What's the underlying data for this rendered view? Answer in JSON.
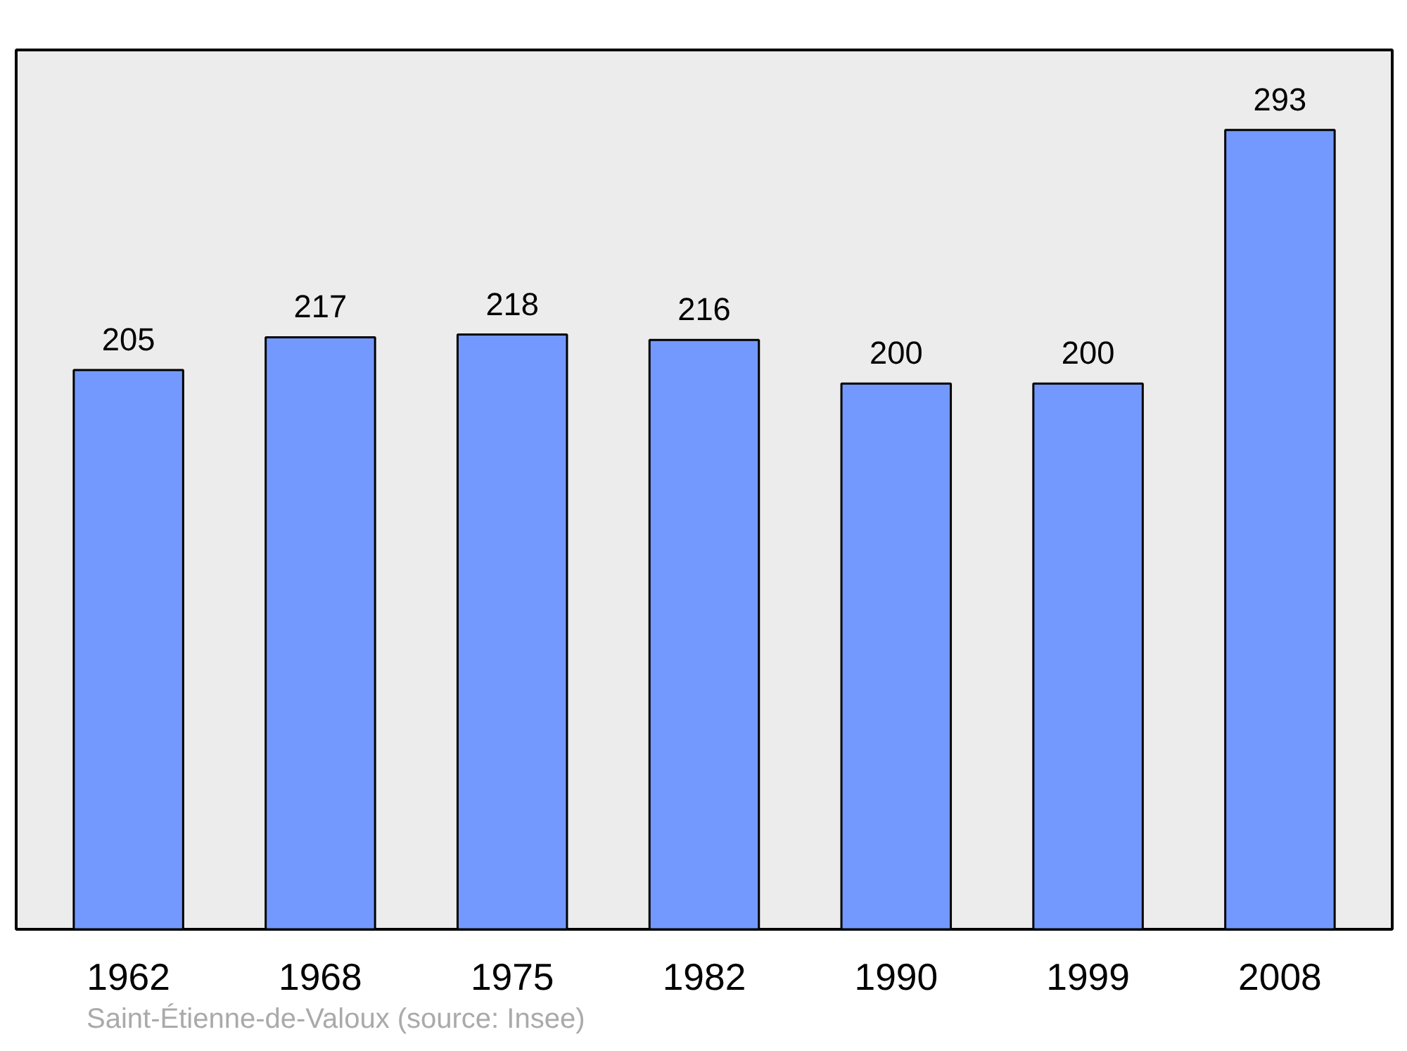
{
  "chart_data": {
    "type": "bar",
    "categories": [
      "1962",
      "1968",
      "1975",
      "1982",
      "1990",
      "1999",
      "2008"
    ],
    "values": [
      205,
      217,
      218,
      216,
      200,
      200,
      293
    ],
    "color": "#7399ff",
    "data_labels": true,
    "grid": false,
    "annotations": [
      "Saint-Étienne-de-Valoux    (source: Insee)"
    ]
  }
}
